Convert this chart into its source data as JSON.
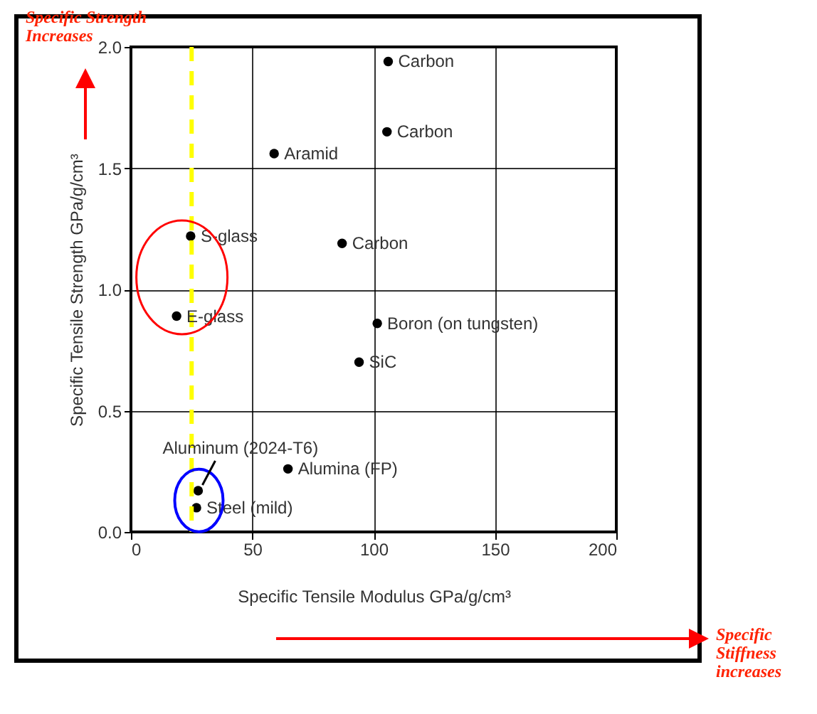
{
  "chart_data": {
    "type": "scatter",
    "xlabel": "Specific Tensile Modulus  GPa/g/cm³",
    "ylabel": "Specific Tensile Strength  GPa/g/cm³",
    "x": [
      106,
      105.5,
      59,
      24.6,
      87,
      18.8,
      101.5,
      94,
      64.7,
      27.7,
      27
    ],
    "series": [
      {
        "color": "#000000",
        "values": [
          1.94,
          1.65,
          1.56,
          1.22,
          1.19,
          0.89,
          0.86,
          0.7,
          0.26,
          0.17,
          0.1
        ]
      }
    ],
    "xlim": [
      0,
      200
    ],
    "xticks": [
      0,
      50,
      100,
      150,
      200
    ],
    "ylim": [
      0,
      2
    ],
    "yticks": [
      {
        "value": 0,
        "label": "0.0"
      },
      0.5,
      {
        "value": 1,
        "label": "1.0"
      },
      1.5,
      {
        "value": 2,
        "label": "2.0"
      }
    ],
    "grid": true,
    "marker": "circle",
    "ref_lines": [
      {
        "axis": "x",
        "value": 25,
        "color": "#ffff00",
        "line_style": "dashed"
      }
    ],
    "annotations": [
      {
        "text": "Carbon",
        "x": 106,
        "y": 1.94
      },
      {
        "text": "Carbon",
        "x": 105.5,
        "y": 1.65
      },
      {
        "text": "Aramid",
        "x": 59,
        "y": 1.56
      },
      {
        "text": "S-glass",
        "x": 24.6,
        "y": 1.22
      },
      {
        "text": "Carbon",
        "x": 87,
        "y": 1.19
      },
      {
        "text": "E-glass",
        "x": 18.8,
        "y": 0.89
      },
      {
        "text": "Boron (on tungsten)",
        "x": 101.5,
        "y": 0.86
      },
      {
        "text": "SiC",
        "x": 94,
        "y": 0.7
      },
      {
        "text": "Alumina (FP)",
        "x": 64.7,
        "y": 0.26
      },
      {
        "text": "Aluminum (2024-T6)",
        "x": 27.7,
        "y": 0.17
      },
      {
        "text": "Steel (mild)",
        "x": 27,
        "y": 0.1
      },
      "Specific Strength Increases",
      "Specific Stiffness increases"
    ]
  }
}
